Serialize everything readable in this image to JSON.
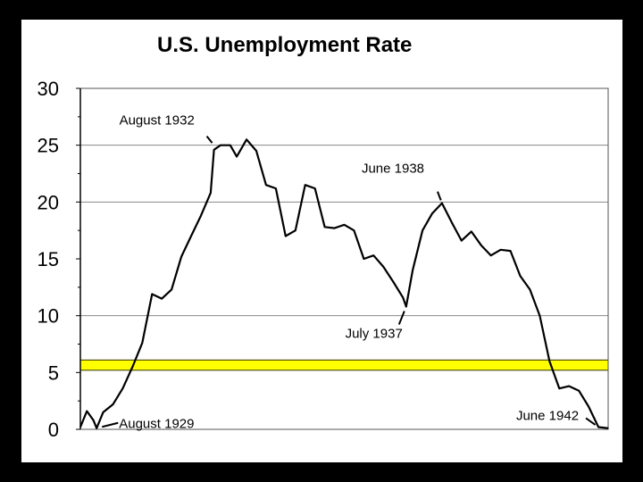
{
  "colors": {
    "background": "#000000",
    "panel": "#ffffff",
    "line": "#000000",
    "grid": "#888888",
    "band_fill": "#ffff00",
    "band_stroke": "#333300"
  },
  "chart_data": {
    "type": "line",
    "title": "U.S. Unemployment Rate",
    "xlabel": "",
    "ylabel": "",
    "ylim": [
      0,
      30
    ],
    "yticks": [
      "0",
      "5",
      "10",
      "15",
      "20",
      "25",
      "30"
    ],
    "ytick_values": [
      0,
      5,
      10,
      15,
      20,
      25,
      30
    ],
    "grid": "horizontal at 10, 20, 25",
    "xlim": [
      "1929-03",
      "1942-09"
    ],
    "highlight_band": {
      "from": 5.2,
      "to": 6.1
    },
    "series": [
      {
        "x": [
          "1929-03",
          "1929-05",
          "1929-07",
          "1929-08",
          "1929-10",
          "1930-01",
          "1930-04",
          "1930-07",
          "1930-10",
          "1931-01",
          "1931-04",
          "1931-07",
          "1931-10",
          "1932-01",
          "1932-04",
          "1932-07",
          "1932-08",
          "1932-10",
          "1933-01",
          "1933-03",
          "1933-06",
          "1933-09",
          "1933-12",
          "1934-03",
          "1934-06",
          "1934-09",
          "1934-12",
          "1935-03",
          "1935-06",
          "1935-09",
          "1935-12",
          "1936-03",
          "1936-06",
          "1936-09",
          "1936-12",
          "1937-03",
          "1937-06",
          "1937-07",
          "1937-09",
          "1937-12",
          "1938-03",
          "1938-06",
          "1938-09",
          "1938-12",
          "1939-03",
          "1939-06",
          "1939-09",
          "1939-12",
          "1940-03",
          "1940-06",
          "1940-09",
          "1940-12",
          "1941-03",
          "1941-06",
          "1941-09",
          "1941-12",
          "1942-03",
          "1942-06",
          "1942-09"
        ],
        "values": [
          0.2,
          1.6,
          0.8,
          0.1,
          1.5,
          2.2,
          3.6,
          5.5,
          7.6,
          11.9,
          11.5,
          12.3,
          15.2,
          17.0,
          18.8,
          20.8,
          24.6,
          25.0,
          25.0,
          24.0,
          25.5,
          24.5,
          21.5,
          21.2,
          17.0,
          17.5,
          21.5,
          21.2,
          17.8,
          17.7,
          18.0,
          17.5,
          15.0,
          15.3,
          14.3,
          13.0,
          11.6,
          10.8,
          14.0,
          17.5,
          19.0,
          19.9,
          18.2,
          16.6,
          17.4,
          16.2,
          15.3,
          15.8,
          15.7,
          13.5,
          12.3,
          10.0,
          6.0,
          3.6,
          3.8,
          3.4,
          2.0,
          0.2,
          0.1
        ]
      }
    ],
    "annotations": [
      {
        "text": "August 1932",
        "x": "1932-08",
        "y": 25.0
      },
      {
        "text": "June 1938",
        "x": "1938-06",
        "y": 19.9
      },
      {
        "text": "July 1937",
        "x": "1937-07",
        "y": 10.8
      },
      {
        "text": "August 1929",
        "x": "1929-08",
        "y": 0.1
      },
      {
        "text": "June 1942",
        "x": "1942-06",
        "y": 0.2
      }
    ]
  }
}
